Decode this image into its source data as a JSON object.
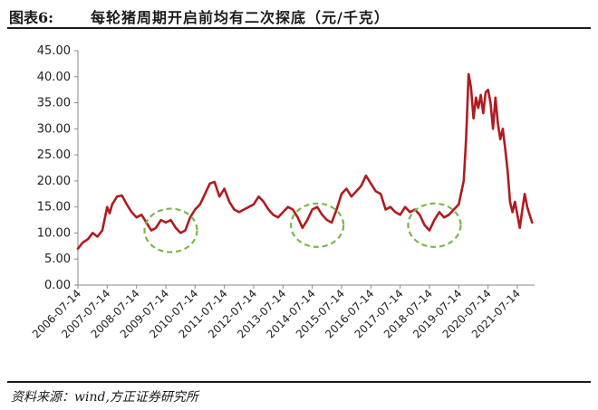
{
  "figure": {
    "label": "图表6:",
    "title": "每轮猪周期开启前均有二次探底（元/千克）",
    "source": "资料来源：wind,方正证券研究所"
  },
  "chart_data": {
    "type": "line",
    "title": "",
    "xlabel": "",
    "ylabel": "",
    "ylim": [
      0,
      45
    ],
    "yticks": [
      "45.00",
      "40.00",
      "35.00",
      "30.00",
      "25.00",
      "20.00",
      "15.00",
      "10.00",
      "5.00",
      "0.00"
    ],
    "ytick_values": [
      45,
      40,
      35,
      30,
      25,
      20,
      15,
      10,
      5,
      0
    ],
    "xlim": [
      "2006-07-14",
      "2022-02-14"
    ],
    "xticks": [
      "2006-07-14",
      "2007-07-14",
      "2008-07-14",
      "2009-07-14",
      "2010-07-14",
      "2011-07-14",
      "2012-07-14",
      "2013-07-14",
      "2014-07-14",
      "2015-07-14",
      "2016-07-14",
      "2017-07-14",
      "2018-07-14",
      "2019-07-14",
      "2020-07-14",
      "2021-07-14"
    ],
    "grid": false,
    "legend": "none",
    "line_color": "#b01b1f",
    "circle_color": "#7ab648",
    "series": [
      {
        "x": [
          "2006-07-14",
          "2006-09-14",
          "2006-11-14",
          "2007-01-14",
          "2007-03-14",
          "2007-05-14",
          "2007-07-14",
          "2007-08-14",
          "2007-09-14",
          "2007-11-14",
          "2008-01-14",
          "2008-03-14",
          "2008-05-14",
          "2008-07-14",
          "2008-09-14",
          "2008-11-14",
          "2009-01-14",
          "2009-03-14",
          "2009-05-14",
          "2009-07-14",
          "2009-09-14",
          "2009-11-14",
          "2010-01-14",
          "2010-03-14",
          "2010-05-14",
          "2010-07-14",
          "2010-09-14",
          "2010-11-14",
          "2011-01-14",
          "2011-03-14",
          "2011-05-14",
          "2011-07-14",
          "2011-09-14",
          "2011-11-14",
          "2012-01-14",
          "2012-03-14",
          "2012-05-14",
          "2012-07-14",
          "2012-09-14",
          "2012-11-14",
          "2013-01-14",
          "2013-03-14",
          "2013-05-14",
          "2013-07-14",
          "2013-09-14",
          "2013-11-14",
          "2014-01-14",
          "2014-03-14",
          "2014-05-14",
          "2014-07-14",
          "2014-09-14",
          "2014-11-14",
          "2015-01-14",
          "2015-03-14",
          "2015-05-14",
          "2015-07-14",
          "2015-09-14",
          "2015-11-14",
          "2016-01-14",
          "2016-03-14",
          "2016-05-14",
          "2016-07-14",
          "2016-09-14",
          "2016-11-14",
          "2017-01-14",
          "2017-03-14",
          "2017-05-14",
          "2017-07-14",
          "2017-09-14",
          "2017-11-14",
          "2018-01-14",
          "2018-03-14",
          "2018-05-14",
          "2018-07-14",
          "2018-09-14",
          "2018-11-14",
          "2019-01-14",
          "2019-03-14",
          "2019-05-14",
          "2019-07-14",
          "2019-09-14",
          "2019-10-14",
          "2019-11-14",
          "2019-12-14",
          "2020-01-14",
          "2020-02-14",
          "2020-03-14",
          "2020-04-14",
          "2020-05-14",
          "2020-06-14",
          "2020-07-14",
          "2020-08-14",
          "2020-09-14",
          "2020-10-14",
          "2020-11-14",
          "2020-12-14",
          "2021-01-14",
          "2021-02-14",
          "2021-03-14",
          "2021-04-14",
          "2021-05-14",
          "2021-06-14",
          "2021-07-14",
          "2021-08-14",
          "2021-09-14",
          "2021-10-14",
          "2021-11-14",
          "2021-12-14",
          "2022-01-14"
        ],
        "values": [
          7.0,
          8.2,
          8.8,
          10.0,
          9.3,
          10.5,
          15.0,
          13.8,
          15.5,
          17.0,
          17.2,
          15.5,
          14.0,
          13.0,
          13.5,
          12.0,
          10.5,
          11.0,
          12.5,
          12.0,
          12.5,
          11.0,
          10.0,
          10.5,
          13.0,
          14.5,
          15.5,
          17.5,
          19.5,
          19.8,
          17.0,
          18.5,
          16.0,
          14.5,
          14.0,
          14.5,
          15.0,
          15.5,
          17.0,
          16.0,
          14.5,
          13.5,
          13.0,
          14.0,
          15.0,
          14.5,
          13.0,
          11.0,
          12.5,
          14.5,
          15.0,
          13.5,
          12.5,
          12.0,
          14.5,
          17.5,
          18.5,
          17.0,
          18.0,
          19.0,
          21.0,
          19.5,
          18.0,
          17.5,
          14.5,
          15.0,
          14.0,
          13.5,
          15.0,
          14.0,
          14.5,
          13.5,
          11.5,
          10.5,
          12.5,
          14.0,
          13.0,
          13.5,
          14.5,
          15.5,
          20.0,
          28.0,
          40.5,
          38.0,
          32.0,
          36.0,
          34.0,
          36.5,
          33.0,
          37.0,
          37.5,
          35.0,
          30.0,
          36.0,
          31.0,
          28.0,
          30.0,
          26.0,
          22.0,
          16.0,
          14.0,
          16.0,
          13.5,
          11.0,
          14.5,
          17.5,
          15.0,
          13.5,
          12.0
        ]
      }
    ],
    "highlights": [
      {
        "center_x": "2009-09-14",
        "center_y": 10.5
      },
      {
        "center_x": "2014-09-14",
        "center_y": 11.5
      },
      {
        "center_x": "2018-09-14",
        "center_y": 11.5
      }
    ]
  }
}
